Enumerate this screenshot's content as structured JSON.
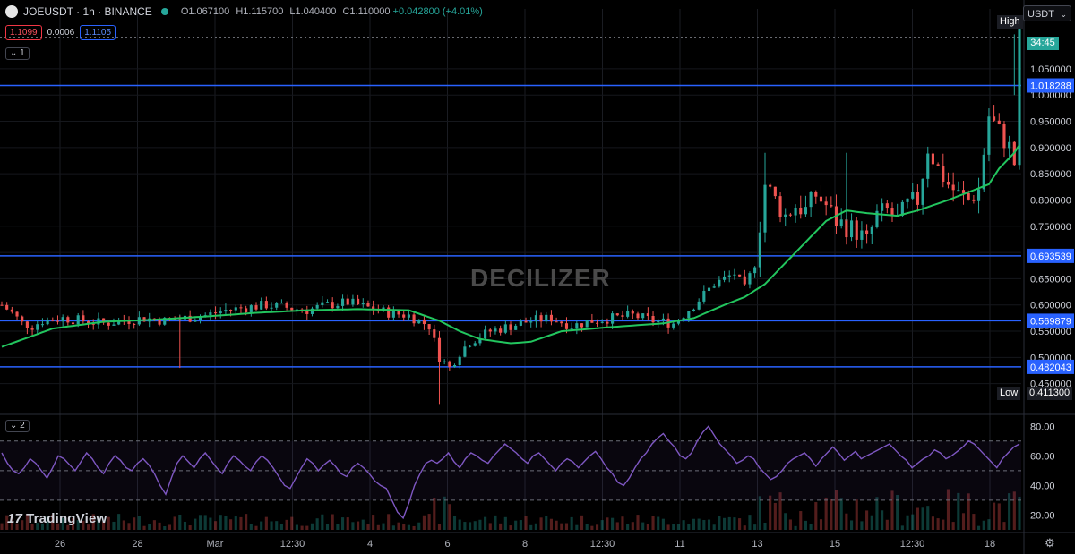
{
  "header": {
    "symbol": "JOEUSDT · 1h · BINANCE",
    "open": "O1.067100",
    "high": "H1.115700",
    "low": "L1.040400",
    "close": "C1.110000",
    "change": "+0.042800 (+4.01%)",
    "bid": "1.1099",
    "spread": "0.0006",
    "ask": "1.1105",
    "main_legend": "1",
    "rsi_legend": "2",
    "currency": "USDT"
  },
  "watermark": "DECILIZER",
  "branding": "TradingView",
  "countdown": "34:45",
  "markers": {
    "high_label": "High",
    "low_label": "Low",
    "low_value": "0.411300"
  },
  "colors": {
    "bull": "#26a69a",
    "bear": "#ef5350",
    "ma": "#22c55e",
    "hline": "#2962ff",
    "rsi": "#7e57c2",
    "background": "#000000"
  },
  "chart_data": [
    {
      "type": "candlestick",
      "title": "JOEUSDT 1h",
      "ylim": [
        0.4,
        1.13
      ],
      "y_ticks": [
        "1.050000",
        "1.000000",
        "0.950000",
        "0.900000",
        "0.850000",
        "0.800000",
        "0.750000",
        "0.700000",
        "0.650000",
        "0.600000",
        "0.550000",
        "0.500000",
        "0.450000"
      ],
      "x_ticks": [
        "26",
        "28",
        "Mar",
        "12:30",
        "4",
        "6",
        "8",
        "12:30",
        "11",
        "13",
        "15",
        "12:30",
        "18"
      ],
      "horizontal_levels": [
        "1.018288",
        "0.693539",
        "0.569879",
        "0.482043"
      ],
      "price_path": [
        [
          0,
          0.6
        ],
        [
          2,
          0.585
        ],
        [
          4,
          0.565
        ],
        [
          6,
          0.56
        ],
        [
          8,
          0.57
        ],
        [
          12,
          0.575
        ],
        [
          16,
          0.57
        ],
        [
          20,
          0.565
        ],
        [
          24,
          0.57
        ],
        [
          28,
          0.575
        ],
        [
          32,
          0.57
        ],
        [
          36,
          0.575
        ],
        [
          40,
          0.58
        ],
        [
          44,
          0.59
        ],
        [
          48,
          0.595
        ],
        [
          52,
          0.6
        ],
        [
          56,
          0.595
        ],
        [
          60,
          0.59
        ],
        [
          64,
          0.6
        ],
        [
          68,
          0.605
        ],
        [
          72,
          0.595
        ],
        [
          76,
          0.585
        ],
        [
          80,
          0.58
        ],
        [
          84,
          0.56
        ],
        [
          86,
          0.5
        ],
        [
          88,
          0.48
        ],
        [
          90,
          0.51
        ],
        [
          92,
          0.53
        ],
        [
          96,
          0.55
        ],
        [
          100,
          0.56
        ],
        [
          104,
          0.57
        ],
        [
          108,
          0.575
        ],
        [
          112,
          0.56
        ],
        [
          116,
          0.57
        ],
        [
          120,
          0.575
        ],
        [
          124,
          0.58
        ],
        [
          128,
          0.57
        ],
        [
          132,
          0.565
        ],
        [
          136,
          0.6
        ],
        [
          140,
          0.64
        ],
        [
          144,
          0.66
        ],
        [
          146,
          0.63
        ],
        [
          148,
          0.68
        ],
        [
          150,
          0.83
        ],
        [
          152,
          0.8
        ],
        [
          154,
          0.77
        ],
        [
          156,
          0.79
        ],
        [
          158,
          0.78
        ],
        [
          160,
          0.81
        ],
        [
          162,
          0.79
        ],
        [
          164,
          0.76
        ],
        [
          166,
          0.75
        ],
        [
          168,
          0.74
        ],
        [
          170,
          0.72
        ],
        [
          172,
          0.77
        ],
        [
          174,
          0.78
        ],
        [
          176,
          0.76
        ],
        [
          178,
          0.79
        ],
        [
          180,
          0.8
        ],
        [
          182,
          0.9
        ],
        [
          184,
          0.86
        ],
        [
          186,
          0.83
        ],
        [
          188,
          0.81
        ],
        [
          190,
          0.8
        ],
        [
          192,
          0.82
        ],
        [
          194,
          0.96
        ],
        [
          196,
          0.93
        ],
        [
          198,
          0.9
        ],
        [
          199,
          0.87
        ],
        [
          200,
          1.11
        ]
      ],
      "ma_path": [
        [
          0,
          0.52
        ],
        [
          10,
          0.555
        ],
        [
          20,
          0.568
        ],
        [
          30,
          0.572
        ],
        [
          40,
          0.578
        ],
        [
          50,
          0.585
        ],
        [
          60,
          0.59
        ],
        [
          70,
          0.592
        ],
        [
          80,
          0.59
        ],
        [
          86,
          0.57
        ],
        [
          90,
          0.55
        ],
        [
          94,
          0.535
        ],
        [
          100,
          0.527
        ],
        [
          104,
          0.53
        ],
        [
          110,
          0.55
        ],
        [
          120,
          0.558
        ],
        [
          130,
          0.565
        ],
        [
          136,
          0.575
        ],
        [
          142,
          0.6
        ],
        [
          146,
          0.615
        ],
        [
          150,
          0.64
        ],
        [
          156,
          0.7
        ],
        [
          162,
          0.76
        ],
        [
          166,
          0.78
        ],
        [
          170,
          0.775
        ],
        [
          176,
          0.77
        ],
        [
          180,
          0.78
        ],
        [
          186,
          0.8
        ],
        [
          190,
          0.815
        ],
        [
          194,
          0.83
        ],
        [
          196,
          0.86
        ],
        [
          199,
          0.89
        ],
        [
          200,
          0.905
        ]
      ],
      "high_value": 1.1157,
      "low_value": 0.4113
    },
    {
      "type": "line",
      "title": "RSI",
      "ylim": [
        10,
        85
      ],
      "y_ticks": [
        "80.00",
        "60.00",
        "40.00",
        "20.00"
      ],
      "bands": [
        70,
        50,
        30
      ],
      "series": [
        {
          "values": [
            62,
            55,
            50,
            48,
            52,
            58,
            55,
            50,
            45,
            52,
            60,
            58,
            54,
            50,
            56,
            62,
            58,
            52,
            48,
            55,
            60,
            57,
            52,
            50,
            55,
            58,
            54,
            48,
            40,
            34,
            45,
            55,
            60,
            56,
            52,
            58,
            62,
            57,
            52,
            48,
            55,
            60,
            57,
            53,
            50,
            56,
            60,
            57,
            52,
            46,
            40,
            38,
            45,
            52,
            58,
            55,
            50,
            54,
            57,
            53,
            48,
            46,
            52,
            55,
            52,
            48,
            43,
            40,
            38,
            30,
            22,
            18,
            28,
            40,
            48,
            55,
            57,
            55,
            58,
            62,
            56,
            52,
            58,
            62,
            60,
            57,
            55,
            60,
            64,
            68,
            65,
            62,
            58,
            55,
            60,
            62,
            58,
            54,
            50,
            55,
            58,
            56,
            52,
            56,
            60,
            63,
            58,
            52,
            48,
            42,
            40,
            45,
            52,
            58,
            62,
            68,
            72,
            75,
            70,
            66,
            60,
            58,
            62,
            70,
            76,
            80,
            74,
            68,
            64,
            60,
            55,
            57,
            60,
            58,
            52,
            48,
            44,
            46,
            50,
            55,
            58,
            60,
            62,
            58,
            53,
            58,
            62,
            66,
            62,
            57,
            60,
            63,
            58,
            60,
            62,
            64,
            66,
            68,
            64,
            60,
            57,
            52,
            55,
            58,
            60,
            64,
            62,
            58,
            60,
            63,
            66,
            70,
            68,
            64,
            60,
            56,
            52,
            58,
            62,
            66,
            68
          ]
        }
      ]
    }
  ]
}
